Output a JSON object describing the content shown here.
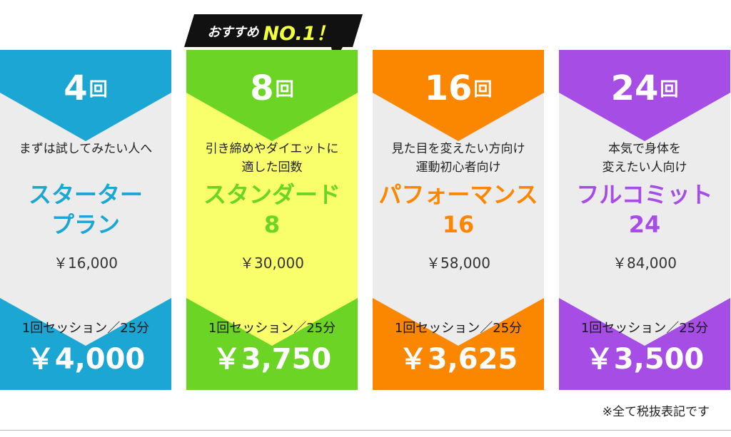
{
  "badge": {
    "small": "おすすめ",
    "big": "NO.1！"
  },
  "unit": "回",
  "plans": [
    {
      "count": "4",
      "desc1": "まずは試してみたい人へ",
      "desc2": "",
      "name1": "スターター",
      "name2": "プラン",
      "total": "￥16,000",
      "session": "1回セッション／25分",
      "unit_price": "￥4,000",
      "accent": "#1ca6d4",
      "middle": "#ececec"
    },
    {
      "count": "8",
      "desc1": "引き締めやダイエットに",
      "desc2": "適した回数",
      "name1": "スタンダード",
      "name2": "8",
      "total": "￥30,000",
      "session": "1回セッション／25分",
      "unit_price": "￥3,750",
      "accent": "#6bd425",
      "middle": "#f8ff6a"
    },
    {
      "count": "16",
      "desc1": "見た目を変えたい方向け",
      "desc2": "運動初心者向け",
      "name1": "パフォーマンス",
      "name2": "16",
      "total": "￥58,000",
      "session": "1回セッション／25分",
      "unit_price": "￥3,625",
      "accent": "#fb8600",
      "middle": "#ececec"
    },
    {
      "count": "24",
      "desc1": "本気で身体を",
      "desc2": "変えたい人向け",
      "name1": "フルコミット",
      "name2": "24",
      "total": "￥84,000",
      "session": "1回セッション／25分",
      "unit_price": "￥3,500",
      "accent": "#a64de6",
      "middle": "#ececec"
    }
  ],
  "note": "※全て税抜表記です"
}
